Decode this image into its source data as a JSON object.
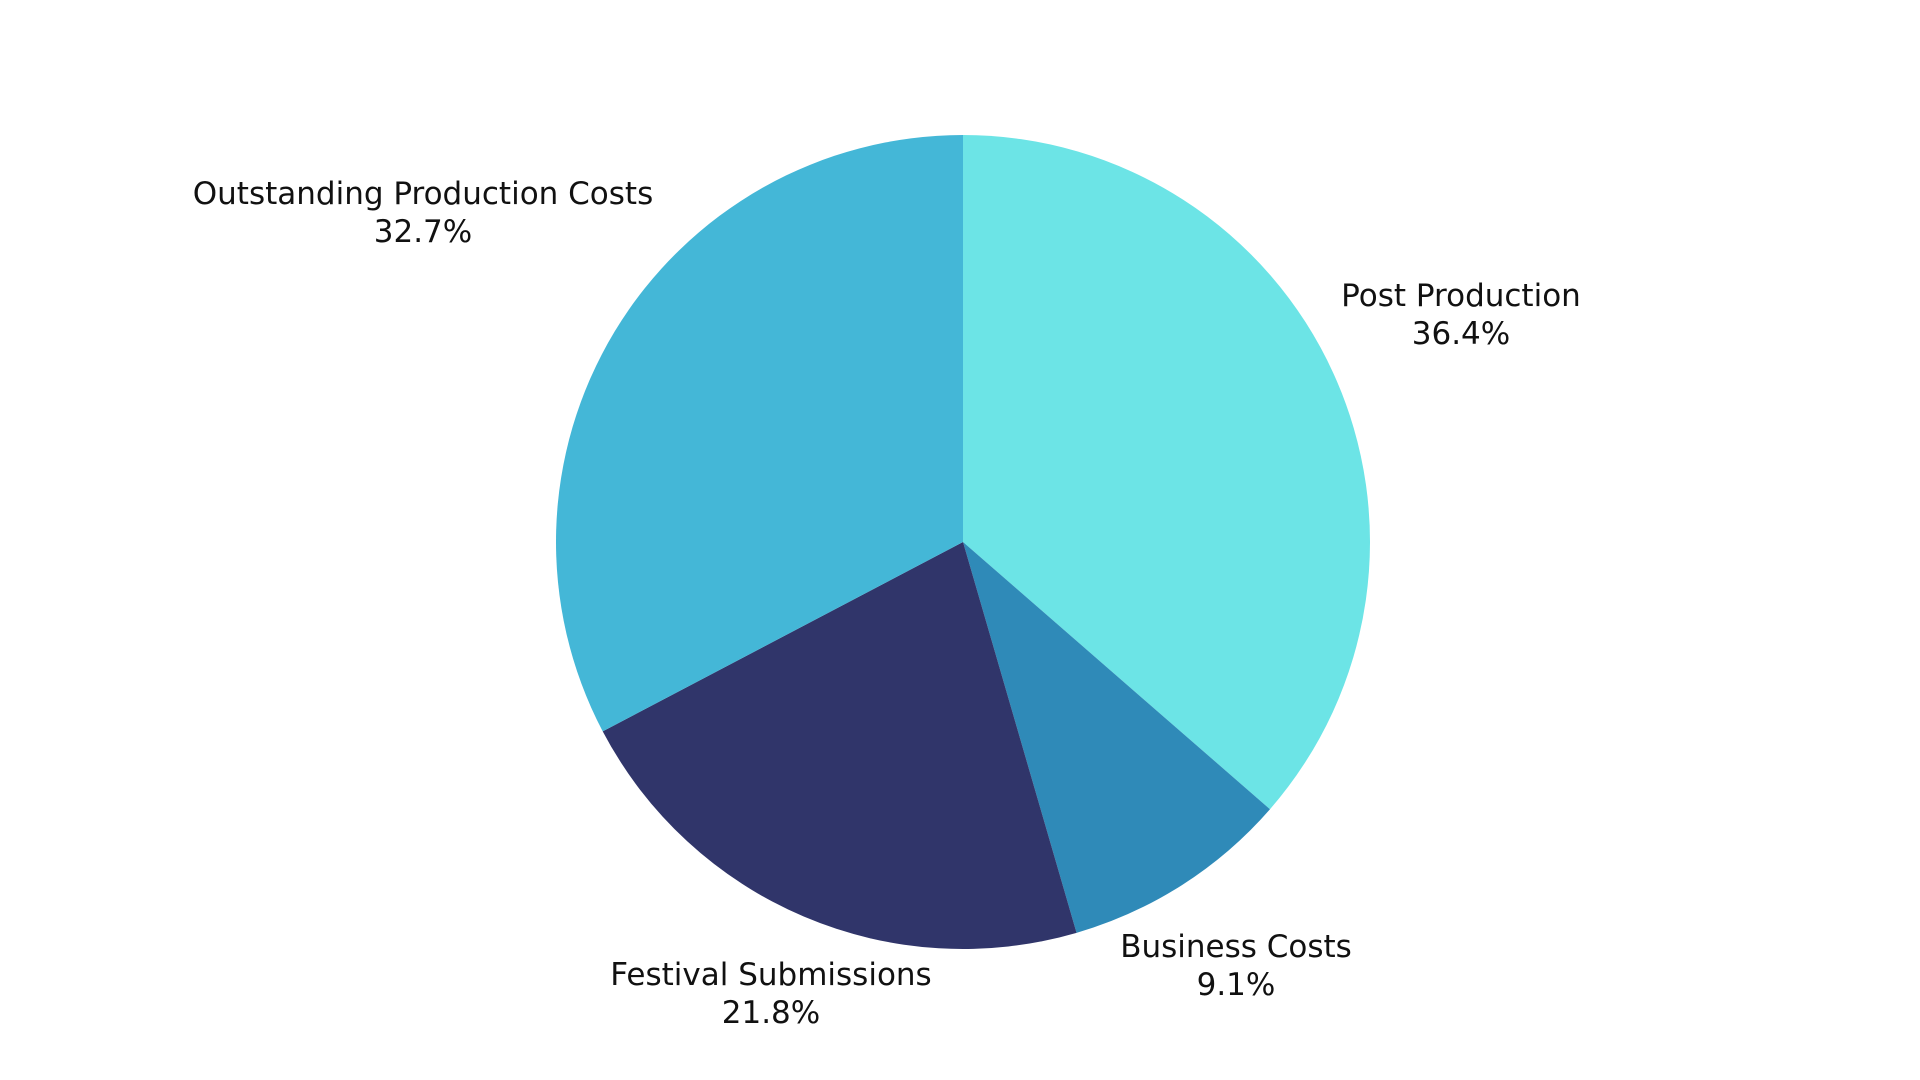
{
  "chart_data": {
    "type": "pie",
    "slices": [
      {
        "label": "Post Production",
        "value": 36.4,
        "value_label": "36.4%",
        "color": "#6ce4e6"
      },
      {
        "label": "Business Costs",
        "value": 9.1,
        "value_label": "9.1%",
        "color": "#2f8ab8"
      },
      {
        "label": "Festival Submissions",
        "value": 21.8,
        "value_label": "21.8%",
        "color": "#30356a"
      },
      {
        "label": "Outstanding Production Costs",
        "value": 32.7,
        "value_label": "32.7%",
        "color": "#44b7d7"
      }
    ],
    "start_angle_deg": 0,
    "direction": "clockwise"
  }
}
